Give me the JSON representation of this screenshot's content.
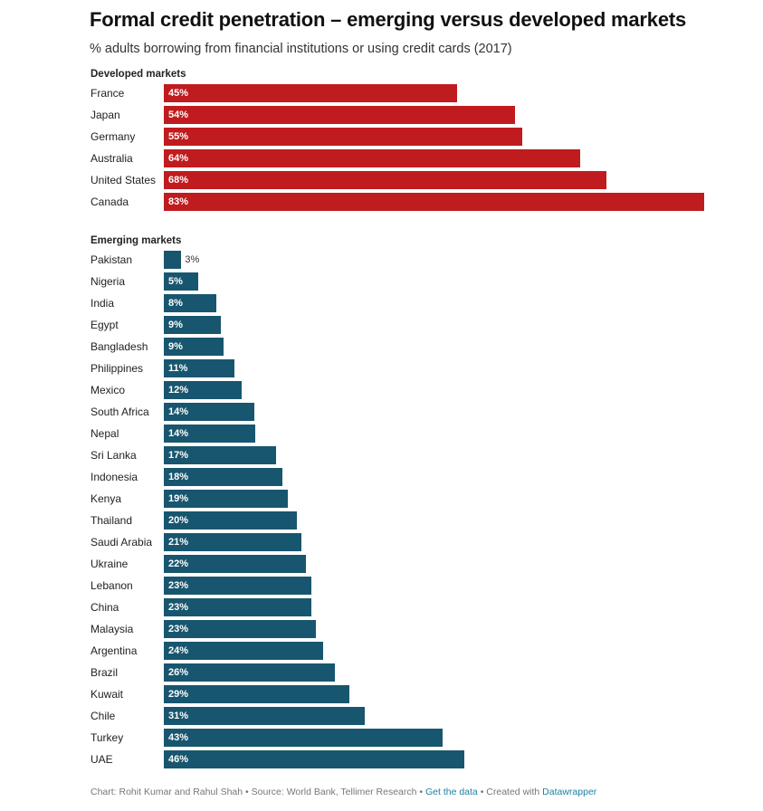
{
  "header": {
    "title": "Formal credit penetration – emerging versus developed markets",
    "subtitle": "% adults borrowing from financial institutions or using credit cards (2017)"
  },
  "footer": {
    "chart_credit": "Chart: Rohit Kumar and Rahul Shah",
    "separator": " • ",
    "source": "Source: World Bank, Tellimer Research",
    "get_data_link": "Get the data",
    "created_with": "Created with ",
    "datawrapper_link": "Datawrapper"
  },
  "colors": {
    "developed": "#c01b1e",
    "emerging": "#18566f",
    "link": "#1d81a2"
  },
  "chart_data": {
    "type": "bar",
    "orientation": "horizontal",
    "title": "Formal credit penetration – emerging versus developed markets",
    "subtitle": "% adults borrowing from financial institutions or using credit cards (2017)",
    "xlabel": "",
    "ylabel": "",
    "xlim": [
      0,
      83
    ],
    "grid": false,
    "groups": [
      {
        "name": "Developed markets",
        "color": "#c01b1e",
        "categories": [
          "France",
          "Japan",
          "Germany",
          "Australia",
          "United States",
          "Canada"
        ],
        "values": [
          45,
          54,
          55,
          64,
          68,
          83
        ],
        "labels": [
          "45%",
          "54%",
          "55%",
          "64%",
          "68%",
          "83%"
        ]
      },
      {
        "name": "Emerging markets",
        "color": "#18566f",
        "categories": [
          "Pakistan",
          "Nigeria",
          "India",
          "Egypt",
          "Bangladesh",
          "Philippines",
          "Mexico",
          "South Africa",
          "Nepal",
          "Sri Lanka",
          "Indonesia",
          "Kenya",
          "Thailand",
          "Saudi Arabia",
          "Ukraine",
          "Lebanon",
          "China",
          "Malaysia",
          "Argentina",
          "Brazil",
          "Kuwait",
          "Chile",
          "Turkey",
          "UAE"
        ],
        "values": [
          2.7,
          5.3,
          8.0,
          8.8,
          9.2,
          10.9,
          11.9,
          13.9,
          14.0,
          17.2,
          18.2,
          19.1,
          20.4,
          21.1,
          21.8,
          22.6,
          22.6,
          23.3,
          24.5,
          26.3,
          28.5,
          30.9,
          42.8,
          46.1
        ],
        "labels": [
          "3%",
          "5%",
          "8%",
          "9%",
          "9%",
          "11%",
          "12%",
          "14%",
          "14%",
          "17%",
          "18%",
          "19%",
          "20%",
          "21%",
          "22%",
          "23%",
          "23%",
          "23%",
          "24%",
          "26%",
          "29%",
          "31%",
          "43%",
          "46%"
        ]
      }
    ]
  }
}
